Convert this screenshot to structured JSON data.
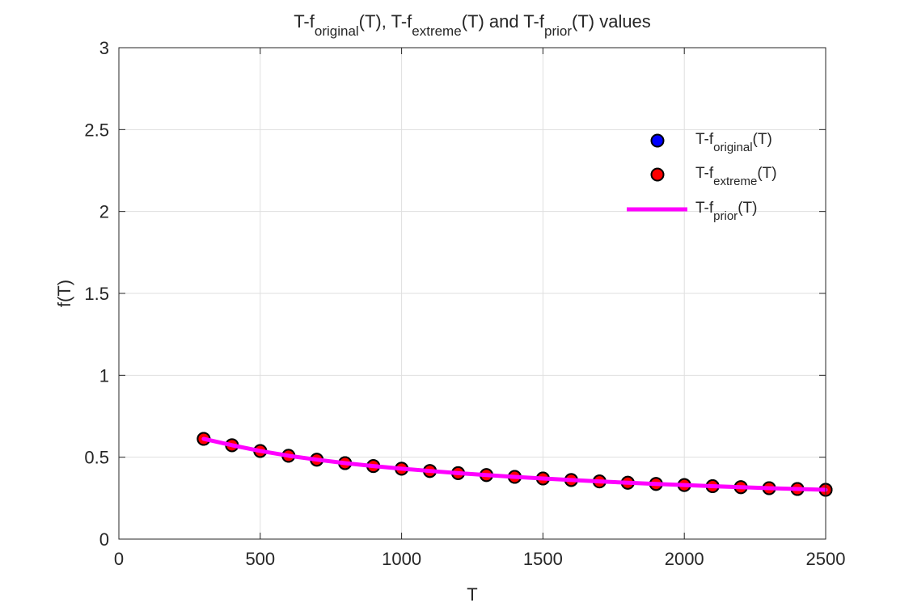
{
  "chart_data": {
    "type": "scatter",
    "title": {
      "parts": [
        {
          "text": "T-f",
          "sub": false
        },
        {
          "text": "original",
          "sub": true
        },
        {
          "text": "(T), T-f",
          "sub": false
        },
        {
          "text": "extreme",
          "sub": true
        },
        {
          "text": "(T) and T-f",
          "sub": false
        },
        {
          "text": "prior",
          "sub": true
        },
        {
          "text": "(T) values",
          "sub": false
        }
      ]
    },
    "xlabel": "T",
    "ylabel": "f(T)",
    "xlim": [
      0,
      2500
    ],
    "ylim": [
      0,
      3
    ],
    "xticks": [
      0,
      500,
      1000,
      1500,
      2000,
      2500
    ],
    "xtick_labels": [
      "0",
      "500",
      "1000",
      "1500",
      "2000",
      "2500"
    ],
    "yticks": [
      0,
      0.5,
      1,
      1.5,
      2,
      2.5,
      3
    ],
    "ytick_labels": [
      "0",
      "0.5",
      "1",
      "1.5",
      "2",
      "2.5",
      "3"
    ],
    "grid": true,
    "legend_position": "top-right",
    "x": [
      300,
      400,
      500,
      600,
      700,
      800,
      900,
      1000,
      1100,
      1200,
      1300,
      1400,
      1500,
      1600,
      1700,
      1800,
      1900,
      2000,
      2100,
      2200,
      2300,
      2400,
      2500
    ],
    "series": [
      {
        "name": "T-f_original(T)",
        "legend_base": "T-f",
        "legend_sub": "original",
        "legend_tail": "(T)",
        "kind": "markers",
        "color": "#0000ff",
        "edge": "#000000",
        "values": [
          0.612,
          0.573,
          0.538,
          0.509,
          0.485,
          0.464,
          0.446,
          0.43,
          0.416,
          0.403,
          0.391,
          0.38,
          0.37,
          0.361,
          0.352,
          0.344,
          0.337,
          0.33,
          0.323,
          0.317,
          0.311,
          0.306,
          0.301
        ]
      },
      {
        "name": "T-f_extreme(T)",
        "legend_base": "T-f",
        "legend_sub": "extreme",
        "legend_tail": "(T)",
        "kind": "markers",
        "color": "#ff0000",
        "edge": "#000000",
        "values": [
          0.612,
          0.573,
          0.538,
          0.509,
          0.485,
          0.464,
          0.446,
          0.43,
          0.416,
          0.403,
          0.391,
          0.38,
          0.37,
          0.361,
          0.352,
          0.344,
          0.337,
          0.33,
          0.323,
          0.317,
          0.311,
          0.306,
          0.301
        ]
      },
      {
        "name": "T-f_prior(T)",
        "legend_base": "T-f",
        "legend_sub": "prior",
        "legend_tail": "(T)",
        "kind": "line",
        "color": "#ff00ff",
        "values": [
          0.612,
          0.573,
          0.538,
          0.509,
          0.485,
          0.464,
          0.446,
          0.43,
          0.416,
          0.403,
          0.391,
          0.38,
          0.37,
          0.361,
          0.352,
          0.344,
          0.337,
          0.33,
          0.323,
          0.317,
          0.311,
          0.306,
          0.301
        ]
      }
    ]
  }
}
